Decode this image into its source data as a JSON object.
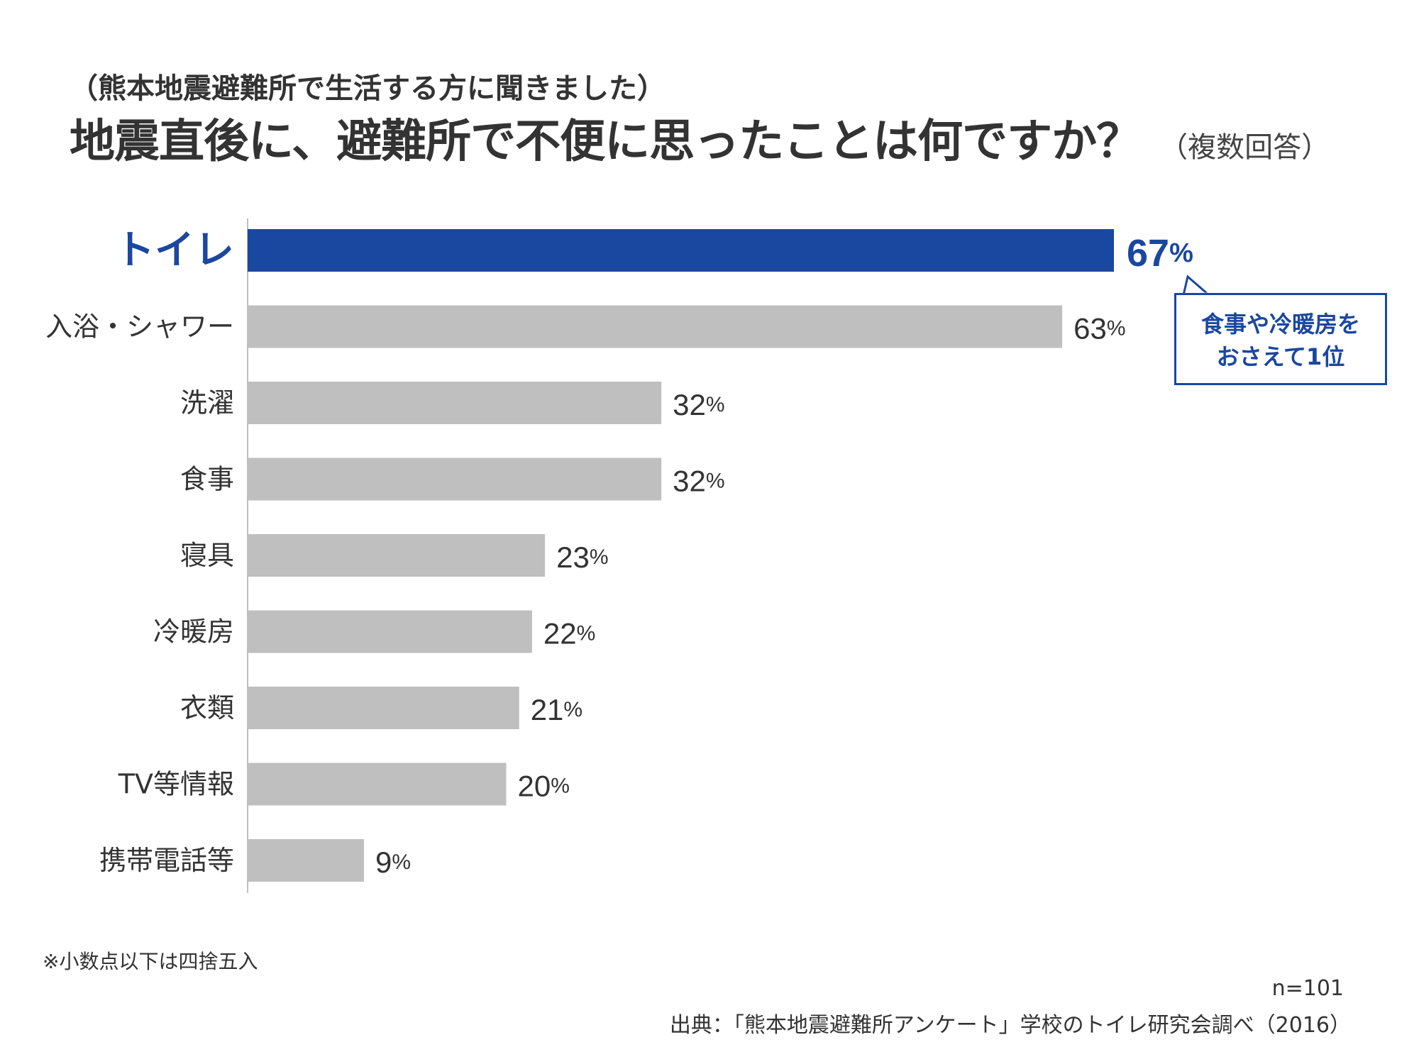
{
  "header": {
    "subtitle": "（熊本地震避難所で生活する方に聞きました）",
    "title": "地震直後に、避難所で不便に思ったことは何ですか？",
    "title_note": "（複数回答）"
  },
  "chart_data": {
    "type": "bar",
    "orientation": "horizontal",
    "categories": [
      "トイレ",
      "入浴・シャワー",
      "洗濯",
      "食事",
      "寝具",
      "冷暖房",
      "衣類",
      "TV等情報",
      "携帯電話等"
    ],
    "values": [
      67,
      63,
      32,
      32,
      23,
      22,
      21,
      20,
      9
    ],
    "value_suffix": "%",
    "highlight_index": 0,
    "colors": {
      "highlight": "#1a47a0",
      "bar": "#bfbfbf",
      "axis": "#bfbfbf",
      "label": "#333333"
    },
    "xlim": [
      0,
      67
    ],
    "grid": false
  },
  "callout": {
    "line1": "食事や冷暖房を",
    "line2": "おさえて1位"
  },
  "footer": {
    "footnote": "※小数点以下は四捨五入",
    "sample": "n=101",
    "source": "出典：「熊本地震避難所アンケート」学校のトイレ研究会調べ（2016）"
  }
}
